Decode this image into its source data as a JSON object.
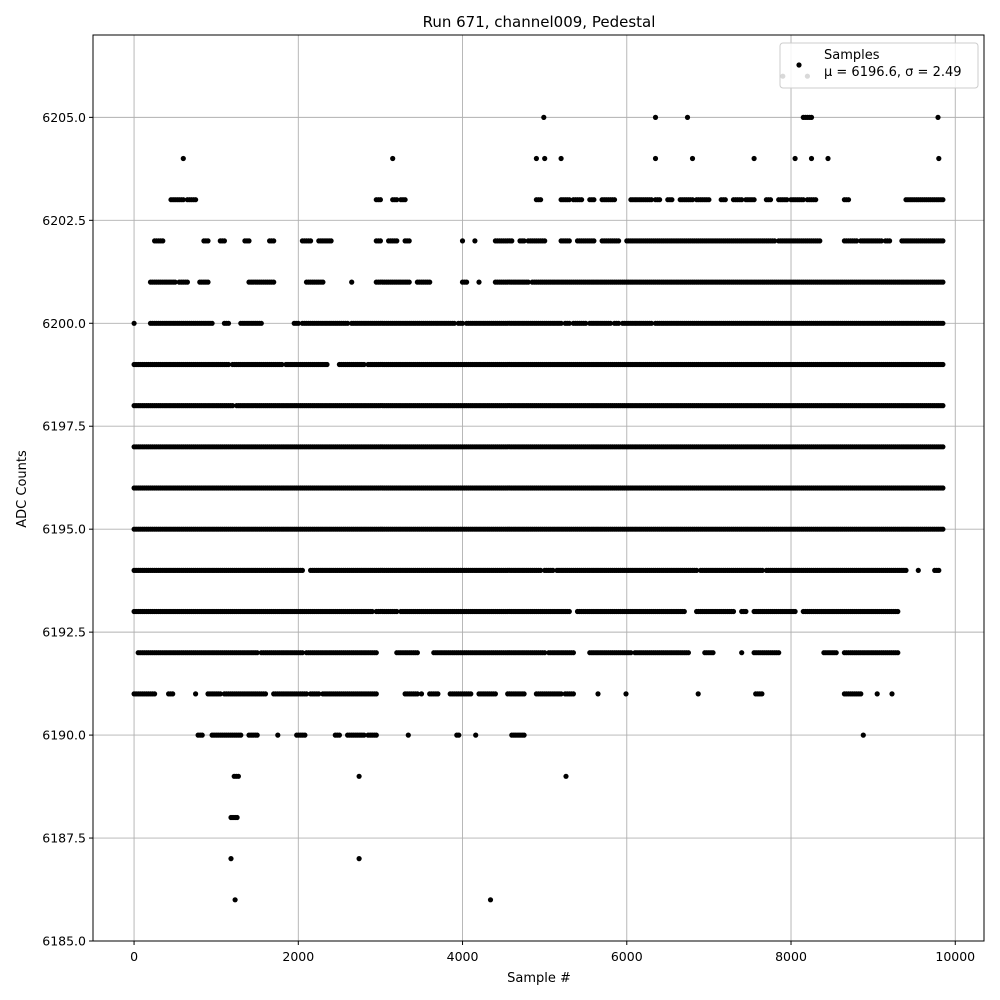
{
  "chart_data": {
    "type": "scatter",
    "title": "Run 671, channel009, Pedestal",
    "xlabel": "Sample #",
    "ylabel": "ADC Counts",
    "xlim": [
      -500,
      10350
    ],
    "ylim": [
      6185.0,
      6207.0
    ],
    "x_ticks": [
      0,
      2000,
      4000,
      6000,
      8000,
      10000
    ],
    "y_ticks": [
      6185.0,
      6187.5,
      6190.0,
      6192.5,
      6195.0,
      6197.5,
      6200.0,
      6202.5,
      6205.0
    ],
    "grid": true,
    "marker_color": "#000000",
    "legend": {
      "position": "top-right",
      "series_name": "Samples",
      "stats_prefix": "μ = 6196.6, σ = 2.49"
    },
    "series": [
      {
        "name": "Samples",
        "level_ranges": [
          {
            "y": 6186,
            "ranges": [
              [
                1230,
                1250
              ],
              [
                4340,
                4360
              ]
            ]
          },
          {
            "y": 6187,
            "ranges": [
              [
                1180,
                1200
              ],
              [
                2740,
                2760
              ]
            ]
          },
          {
            "y": 6188,
            "ranges": [
              [
                1180,
                1270
              ]
            ]
          },
          {
            "y": 6189,
            "ranges": [
              [
                1220,
                1290
              ],
              [
                2740,
                2760
              ],
              [
                5260,
                5280
              ]
            ]
          },
          {
            "y": 6190,
            "ranges": [
              [
                780,
                850
              ],
              [
                950,
                1300
              ],
              [
                1400,
                1500
              ],
              [
                1750,
                1770
              ],
              [
                1980,
                2100
              ],
              [
                2450,
                2500
              ],
              [
                2600,
                2800
              ],
              [
                2850,
                2960
              ],
              [
                3340,
                3360
              ],
              [
                3930,
                3970
              ],
              [
                4160,
                4180
              ],
              [
                4600,
                4750
              ],
              [
                8880,
                8900
              ]
            ]
          },
          {
            "y": 6191,
            "ranges": [
              [
                0,
                260
              ],
              [
                420,
                480
              ],
              [
                750,
                770
              ],
              [
                900,
                1050
              ],
              [
                1100,
                1600
              ],
              [
                1700,
                2100
              ],
              [
                2150,
                2250
              ],
              [
                2300,
                2950
              ],
              [
                3300,
                3450
              ],
              [
                3500,
                3520
              ],
              [
                3600,
                3700
              ],
              [
                3850,
                4100
              ],
              [
                4200,
                4400
              ],
              [
                4550,
                4750
              ],
              [
                4900,
                5200
              ],
              [
                5250,
                5350
              ],
              [
                5650,
                5670
              ],
              [
                5990,
                6010
              ],
              [
                6870,
                6890
              ],
              [
                7570,
                7650
              ],
              [
                8650,
                8850
              ],
              [
                9050,
                9070
              ],
              [
                9230,
                9250
              ]
            ]
          },
          {
            "y": 6192,
            "ranges": [
              [
                50,
                1500
              ],
              [
                1550,
                2050
              ],
              [
                2100,
                2950
              ],
              [
                3200,
                3450
              ],
              [
                3650,
                5000
              ],
              [
                5050,
                5350
              ],
              [
                5550,
                6050
              ],
              [
                6100,
                6750
              ],
              [
                6950,
                7050
              ],
              [
                7400,
                7420
              ],
              [
                7550,
                7850
              ],
              [
                8400,
                8550
              ],
              [
                8650,
                9300
              ]
            ]
          },
          {
            "y": 6193,
            "ranges": [
              [
                0,
                2900
              ],
              [
                2950,
                3200
              ],
              [
                3250,
                5300
              ],
              [
                5400,
                6700
              ],
              [
                6850,
                7300
              ],
              [
                7400,
                7450
              ],
              [
                7550,
                8050
              ],
              [
                8150,
                9300
              ]
            ]
          },
          {
            "y": 6194,
            "ranges": [
              [
                0,
                2050
              ],
              [
                2150,
                4950
              ],
              [
                5000,
                5100
              ],
              [
                5150,
                6850
              ],
              [
                6900,
                7650
              ],
              [
                7700,
                9400
              ],
              [
                9550,
                9570
              ],
              [
                9750,
                9800
              ]
            ]
          },
          {
            "y": 6195,
            "ranges": [
              [
                0,
                9850
              ]
            ]
          },
          {
            "y": 6196,
            "ranges": [
              [
                0,
                9850
              ]
            ]
          },
          {
            "y": 6197,
            "ranges": [
              [
                0,
                9850
              ]
            ]
          },
          {
            "y": 6198,
            "ranges": [
              [
                0,
                1200
              ],
              [
                1250,
                9850
              ]
            ]
          },
          {
            "y": 6199,
            "ranges": [
              [
                0,
                1150
              ],
              [
                1200,
                1800
              ],
              [
                1850,
                2350
              ],
              [
                2500,
                2800
              ],
              [
                2850,
                9850
              ]
            ]
          },
          {
            "y": 6200,
            "ranges": [
              [
                0,
                20
              ],
              [
                200,
                950
              ],
              [
                1100,
                1150
              ],
              [
                1300,
                1550
              ],
              [
                1950,
                2000
              ],
              [
                2050,
                2600
              ],
              [
                2650,
                3900
              ],
              [
                3950,
                4000
              ],
              [
                4050,
                5200
              ],
              [
                5250,
                5300
              ],
              [
                5350,
                5500
              ],
              [
                5550,
                5800
              ],
              [
                5850,
                5900
              ],
              [
                5950,
                6300
              ],
              [
                6350,
                9850
              ]
            ]
          },
          {
            "y": 6201,
            "ranges": [
              [
                200,
                500
              ],
              [
                550,
                650
              ],
              [
                800,
                900
              ],
              [
                1400,
                1700
              ],
              [
                2100,
                2300
              ],
              [
                2650,
                2670
              ],
              [
                2950,
                3350
              ],
              [
                3450,
                3600
              ],
              [
                4000,
                4050
              ],
              [
                4200,
                4220
              ],
              [
                4400,
                4800
              ],
              [
                4850,
                9850
              ]
            ]
          },
          {
            "y": 6202,
            "ranges": [
              [
                250,
                350
              ],
              [
                850,
                900
              ],
              [
                1050,
                1100
              ],
              [
                1350,
                1400
              ],
              [
                1650,
                1700
              ],
              [
                2050,
                2150
              ],
              [
                2250,
                2400
              ],
              [
                2950,
                3000
              ],
              [
                3100,
                3200
              ],
              [
                3300,
                3350
              ],
              [
                4000,
                4020
              ],
              [
                4150,
                4170
              ],
              [
                4400,
                4600
              ],
              [
                4700,
                4750
              ],
              [
                4800,
                5000
              ],
              [
                5200,
                5300
              ],
              [
                5400,
                5600
              ],
              [
                5700,
                5900
              ],
              [
                6000,
                7800
              ],
              [
                7850,
                8350
              ],
              [
                8650,
                8800
              ],
              [
                8850,
                9100
              ],
              [
                9150,
                9200
              ],
              [
                9350,
                9850
              ]
            ]
          },
          {
            "y": 6203,
            "ranges": [
              [
                450,
                600
              ],
              [
                650,
                750
              ],
              [
                2950,
                3000
              ],
              [
                3150,
                3200
              ],
              [
                3250,
                3300
              ],
              [
                4900,
                4950
              ],
              [
                5200,
                5300
              ],
              [
                5350,
                5450
              ],
              [
                5550,
                5600
              ],
              [
                5700,
                5850
              ],
              [
                6050,
                6300
              ],
              [
                6350,
                6400
              ],
              [
                6500,
                6550
              ],
              [
                6650,
                6800
              ],
              [
                6850,
                7000
              ],
              [
                7150,
                7200
              ],
              [
                7300,
                7400
              ],
              [
                7450,
                7550
              ],
              [
                7700,
                7750
              ],
              [
                7850,
                7950
              ],
              [
                8000,
                8150
              ],
              [
                8200,
                8300
              ],
              [
                8650,
                8700
              ],
              [
                9400,
                9850
              ]
            ]
          },
          {
            "y": 6204,
            "ranges": [
              [
                600,
                620
              ],
              [
                3150,
                3170
              ],
              [
                4900,
                4920
              ],
              [
                5000,
                5020
              ],
              [
                5200,
                5220
              ],
              [
                6350,
                6370
              ],
              [
                6800,
                6820
              ],
              [
                7550,
                7570
              ],
              [
                8050,
                8070
              ],
              [
                8250,
                8270
              ],
              [
                8450,
                8470
              ],
              [
                9800,
                9820
              ]
            ]
          },
          {
            "y": 6205,
            "ranges": [
              [
                4990,
                5010
              ],
              [
                6350,
                6370
              ],
              [
                6740,
                6760
              ],
              [
                8150,
                8250
              ],
              [
                9790,
                9810
              ]
            ]
          },
          {
            "y": 6206,
            "ranges": [
              [
                7900,
                7920
              ],
              [
                8200,
                8220
              ]
            ]
          }
        ]
      }
    ]
  }
}
